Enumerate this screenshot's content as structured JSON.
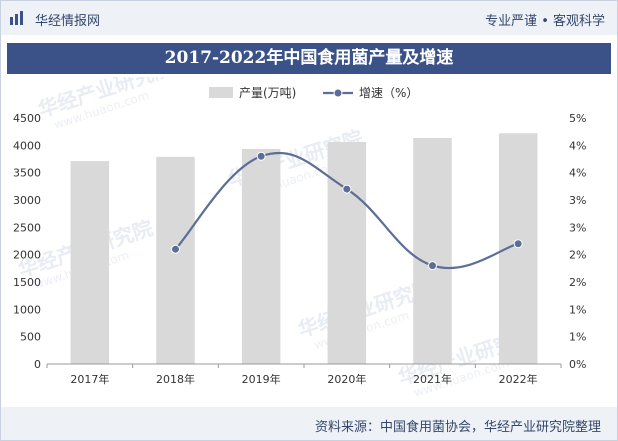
{
  "header": {
    "brand": "华经情报网",
    "tagline": "专业严谨 • 客观科学"
  },
  "footer": {
    "source": "资料来源：中国食用菌协会，华经产业研究院整理"
  },
  "watermark": {
    "text": "华经产业研究院",
    "url": "www.huaon.com"
  },
  "colors": {
    "brand": "#3b5288",
    "bar": "#d9d9d9",
    "line": "#5b6e96",
    "text": "#333333"
  },
  "chart_data": {
    "type": "bar",
    "title": "2017-2022年中国食用菌产量及增速",
    "categories": [
      "2017年",
      "2018年",
      "2019年",
      "2020年",
      "2021年",
      "2022年"
    ],
    "series": [
      {
        "name": "产量(万吨)",
        "type": "bar",
        "axis": "left",
        "values": [
          3712,
          3789,
          3934,
          4061,
          4134,
          4222
        ]
      },
      {
        "name": "增速（%）",
        "type": "line",
        "axis": "right",
        "values": [
          null,
          2.1,
          3.8,
          3.2,
          1.8,
          2.2
        ]
      }
    ],
    "yleft": {
      "min": 0,
      "max": 4500,
      "step": 500,
      "ticks": [
        "0",
        "500",
        "1000",
        "1500",
        "2000",
        "2500",
        "3000",
        "3500",
        "4000",
        "4500"
      ]
    },
    "yright": {
      "min": 0,
      "max": 4.5,
      "step": 0.5,
      "ticks": [
        "0%",
        "1%",
        "1%",
        "2%",
        "2%",
        "3%",
        "3%",
        "4%",
        "4%",
        "5%"
      ]
    },
    "legend": "top-center",
    "grid": false
  }
}
